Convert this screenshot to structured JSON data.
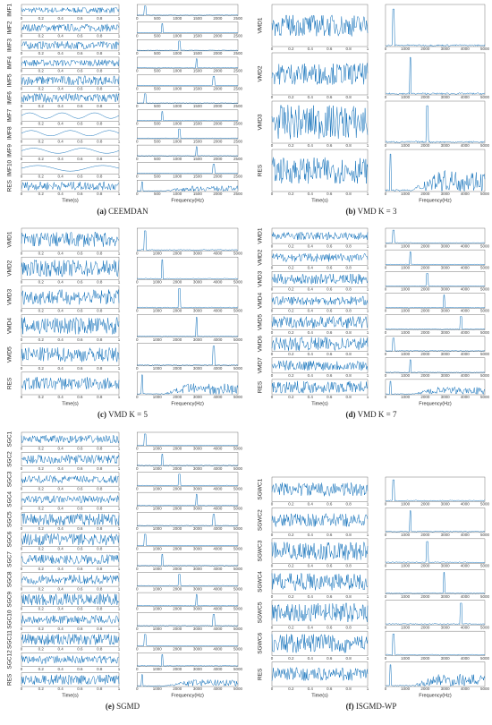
{
  "time_ticks": [
    "0",
    "0.2",
    "0.4",
    "0.6",
    "0.8",
    "1"
  ],
  "time_label": "Time(s)",
  "freq_label": "Frequency(Hz)",
  "panels": [
    {
      "label": "(a)",
      "name": "CEEMDAN",
      "rows": [
        "IMF1",
        "IMF2",
        "IMF3",
        "IMF4",
        "IMF5",
        "IMF6",
        "IMF7",
        "IMF8",
        "IMF9",
        "IMF10",
        "RES"
      ],
      "freq_ticks": [
        "0",
        "500",
        "1000",
        "1500",
        "2000",
        "2500"
      ]
    },
    {
      "label": "(b)",
      "name": "VMD K = 3",
      "rows": [
        "VMD1",
        "VMD2",
        "VMD3",
        "RES"
      ],
      "freq_ticks": [
        "0",
        "1000",
        "2000",
        "3000",
        "4000",
        "5000"
      ]
    },
    {
      "label": "(c)",
      "name": "VMD K = 5",
      "rows": [
        "VMD1",
        "VMD2",
        "VMD3",
        "VMD4",
        "VMD5",
        "RES"
      ],
      "freq_ticks": [
        "0",
        "1000",
        "2000",
        "3000",
        "4000",
        "5000"
      ]
    },
    {
      "label": "(d)",
      "name": "VMD K = 7",
      "rows": [
        "VMD1",
        "VMD2",
        "VMD3",
        "VMD4",
        "VMD5",
        "VMD6",
        "VMD7",
        "RES"
      ],
      "freq_ticks": [
        "0",
        "1000",
        "2000",
        "3000",
        "4000",
        "5000"
      ]
    },
    {
      "label": "(e)",
      "name": "SGMD",
      "rows": [
        "SGC1",
        "SGC2",
        "SGC3",
        "SGC4",
        "SGC5",
        "SGC6",
        "SGC7",
        "SGC8",
        "SGC9",
        "SGC10",
        "SGC11",
        "SGC12",
        "RES"
      ],
      "freq_ticks": [
        "0",
        "1000",
        "2000",
        "3000",
        "4000",
        "5000"
      ]
    },
    {
      "label": "(f)",
      "name": "ISGMD-WP",
      "rows": [
        "SGWC1",
        "SGWC2",
        "SGWC3",
        "SGWC4",
        "SGWC5",
        "SGWC6",
        "RES"
      ],
      "freq_ticks": [
        "0",
        "1000",
        "2000",
        "3000",
        "4000",
        "5000"
      ]
    }
  ]
}
